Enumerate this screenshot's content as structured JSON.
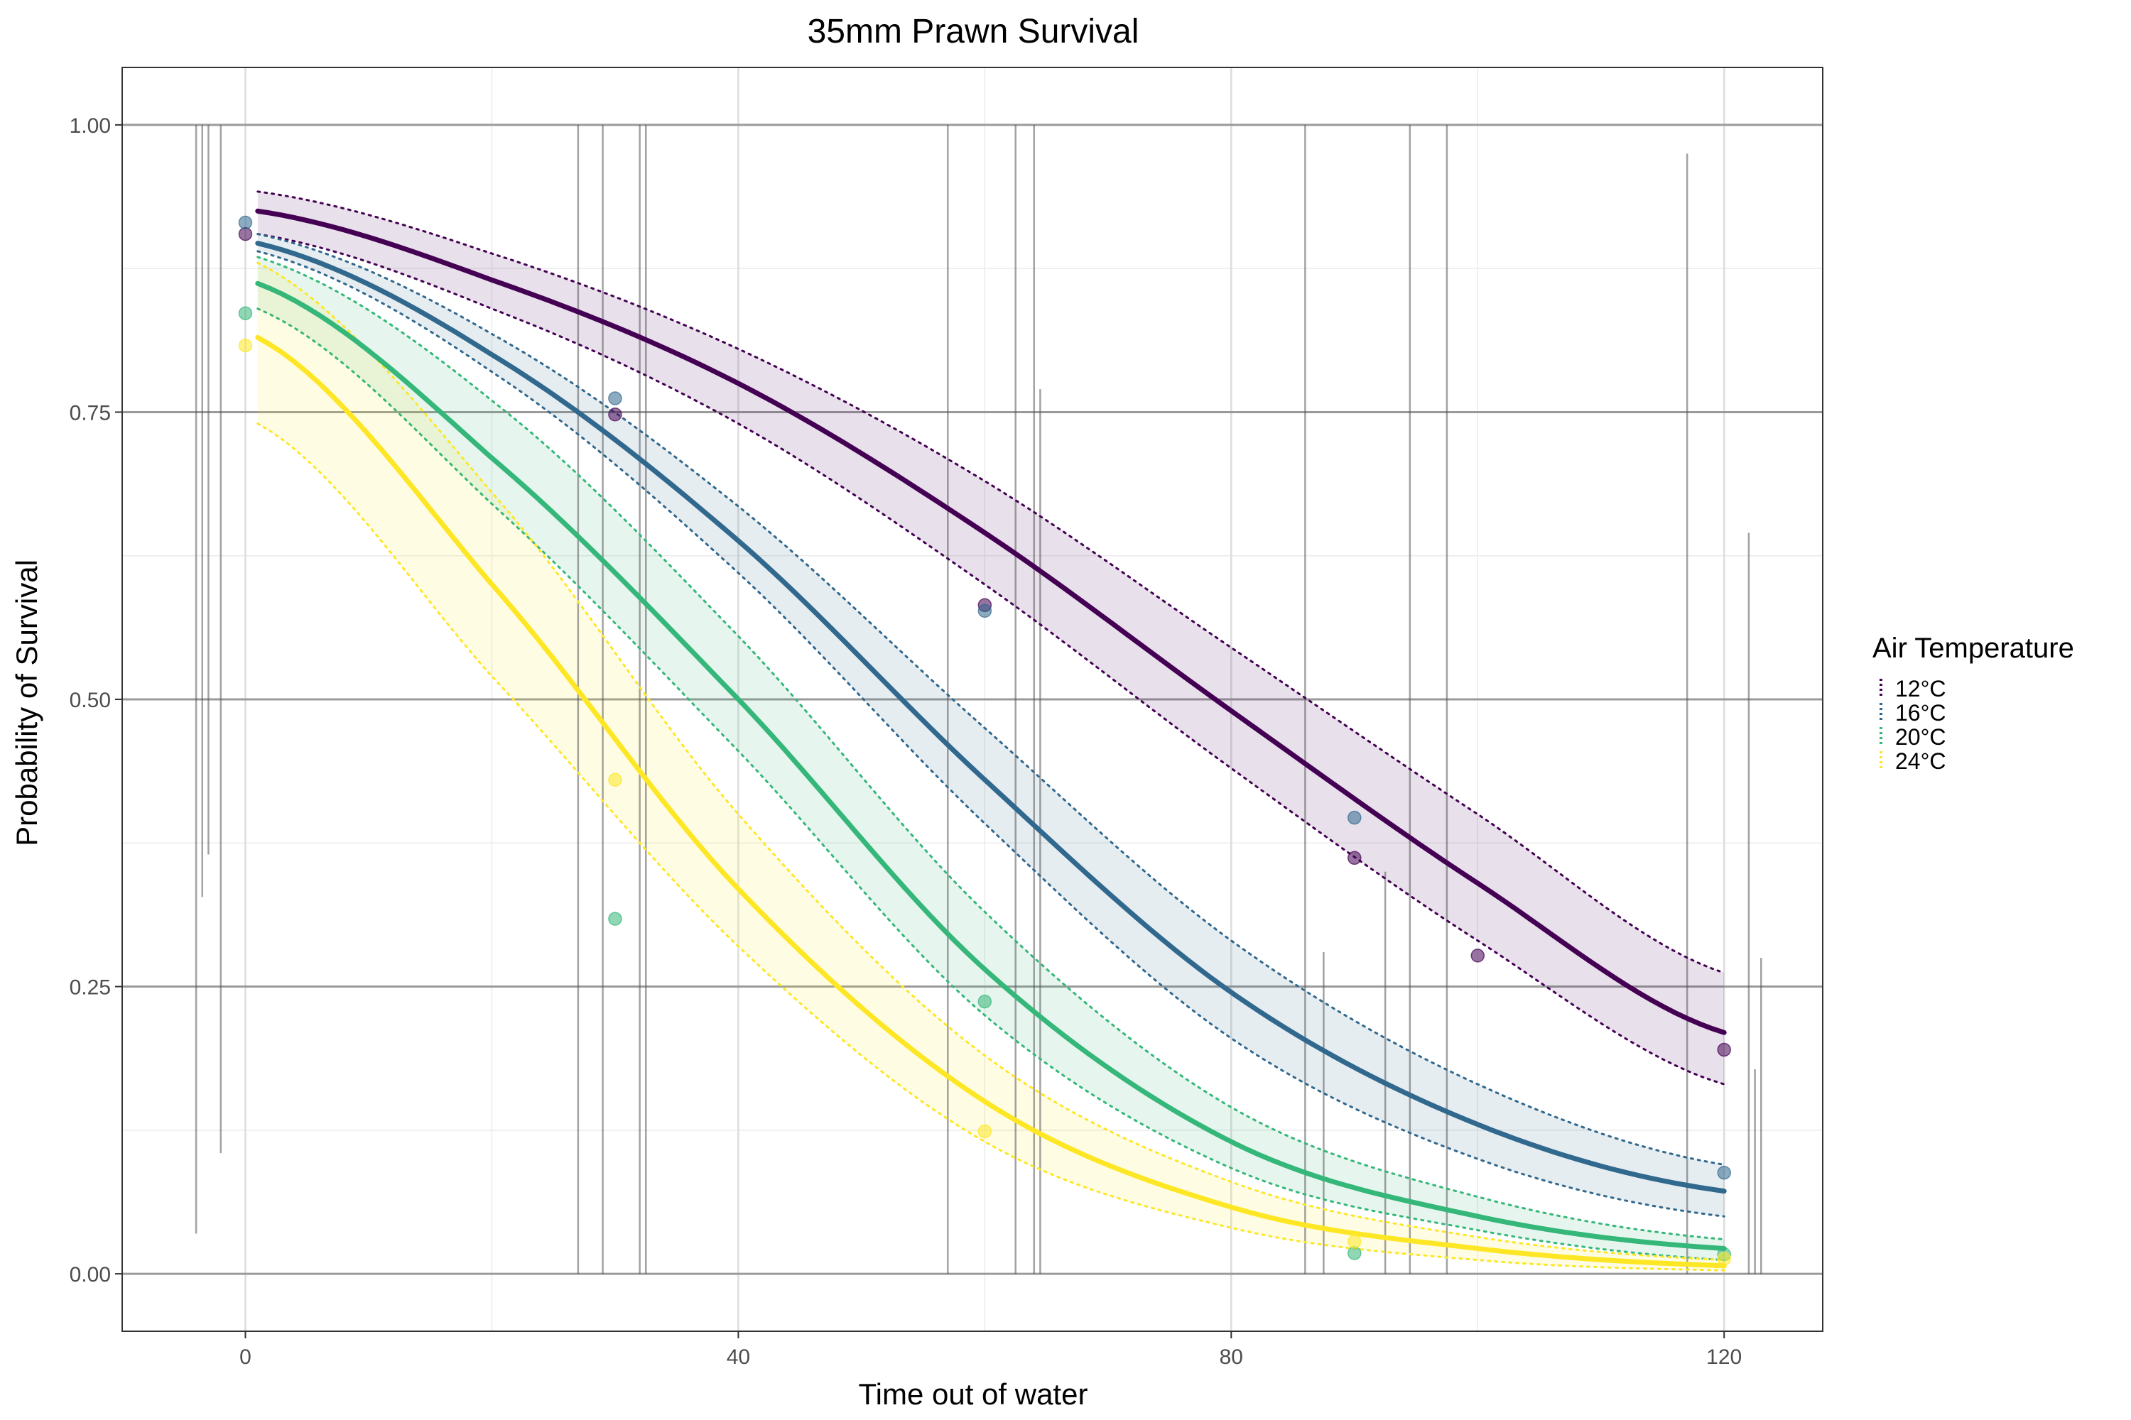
{
  "chart_data": {
    "type": "line",
    "title": "35mm Prawn Survival",
    "xlabel": "Time out of water",
    "ylabel": "Probability of Survival",
    "xlim": [
      -10,
      128
    ],
    "ylim": [
      -0.05,
      1.05
    ],
    "x_ticks": [
      0,
      40,
      80,
      120
    ],
    "x_tick_labels": [
      "0",
      "40",
      "80",
      "120"
    ],
    "y_ticks": [
      0,
      0.25,
      0.5,
      0.75,
      1.0
    ],
    "y_tick_labels": [
      "0.00",
      "0.25",
      "0.50",
      "0.75",
      "1.00"
    ],
    "grid": true,
    "legend": {
      "title": "Air Temperature",
      "position": "right"
    },
    "series": [
      {
        "name": "12°C",
        "color": "#440154",
        "x": [
          1,
          20,
          40,
          60,
          80,
          100,
          120
        ],
        "fit": [
          0.925,
          0.865,
          0.775,
          0.645,
          0.49,
          0.34,
          0.21
        ],
        "lower": [
          0.905,
          0.84,
          0.74,
          0.6,
          0.44,
          0.29,
          0.165
        ],
        "upper": [
          0.942,
          0.888,
          0.805,
          0.69,
          0.545,
          0.4,
          0.262
        ],
        "points": [
          [
            0,
            0.905
          ],
          [
            30,
            0.748
          ],
          [
            60,
            0.582
          ],
          [
            90,
            0.362
          ],
          [
            100,
            0.277
          ],
          [
            120,
            0.195
          ]
        ]
      },
      {
        "name": "16°C",
        "color": "#31688e",
        "x": [
          1,
          20,
          40,
          60,
          80,
          100,
          120
        ],
        "fit": [
          0.897,
          0.8,
          0.638,
          0.43,
          0.245,
          0.13,
          0.072
        ],
        "lower": [
          0.89,
          0.785,
          0.61,
          0.392,
          0.205,
          0.1,
          0.05
        ],
        "upper": [
          0.905,
          0.818,
          0.668,
          0.475,
          0.29,
          0.165,
          0.095
        ],
        "points": [
          [
            0,
            0.915
          ],
          [
            30,
            0.762
          ],
          [
            60,
            0.577
          ],
          [
            90,
            0.397
          ],
          [
            120,
            0.088
          ]
        ]
      },
      {
        "name": "20°C",
        "color": "#35b779",
        "x": [
          1,
          20,
          40,
          60,
          80,
          100,
          120
        ],
        "fit": [
          0.862,
          0.71,
          0.5,
          0.265,
          0.115,
          0.05,
          0.022
        ],
        "lower": [
          0.84,
          0.67,
          0.455,
          0.225,
          0.092,
          0.038,
          0.012
        ],
        "upper": [
          0.885,
          0.76,
          0.555,
          0.315,
          0.145,
          0.067,
          0.03
        ],
        "points": [
          [
            0,
            0.836
          ],
          [
            30,
            0.309
          ],
          [
            60,
            0.237
          ],
          [
            90,
            0.018
          ],
          [
            120,
            0.017
          ]
        ]
      },
      {
        "name": "24°C",
        "color": "#fde725",
        "x": [
          1,
          20,
          40,
          60,
          80,
          100,
          120
        ],
        "fit": [
          0.815,
          0.6,
          0.335,
          0.15,
          0.058,
          0.022,
          0.007
        ],
        "lower": [
          0.74,
          0.52,
          0.285,
          0.115,
          0.04,
          0.012,
          0.003
        ],
        "upper": [
          0.88,
          0.68,
          0.4,
          0.19,
          0.08,
          0.032,
          0.012
        ],
        "points": [
          [
            0,
            0.808
          ],
          [
            30,
            0.43
          ],
          [
            60,
            0.124
          ],
          [
            90,
            0.028
          ],
          [
            120,
            0.013
          ]
        ]
      }
    ],
    "rug_lines": [
      [
        -4,
        0.035,
        1.0
      ],
      [
        -3.5,
        0.328,
        1.0
      ],
      [
        -3,
        0.365,
        1.0
      ],
      [
        -2,
        0.105,
        1.0
      ],
      [
        27,
        0.0,
        1.0
      ],
      [
        29,
        0.0,
        1.0
      ],
      [
        32,
        0.0,
        1.0
      ],
      [
        32.5,
        0.0,
        1.0
      ],
      [
        57,
        0.0,
        1.0
      ],
      [
        62.5,
        0.0,
        1.0
      ],
      [
        64,
        0.0,
        1.0
      ],
      [
        64.5,
        0.0,
        0.77
      ],
      [
        86,
        0.0,
        1.0
      ],
      [
        87.5,
        0.0,
        0.28
      ],
      [
        92.5,
        0.0,
        0.35
      ],
      [
        94.5,
        0.0,
        1.0
      ],
      [
        97.5,
        0.0,
        1.0
      ],
      [
        117,
        0.0,
        0.975
      ],
      [
        122,
        0.0,
        0.645
      ],
      [
        122.5,
        0.0,
        0.178
      ],
      [
        123,
        0.0,
        0.275
      ]
    ]
  }
}
